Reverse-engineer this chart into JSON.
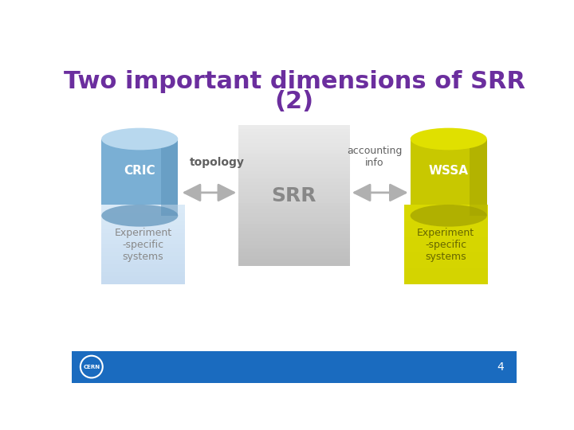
{
  "title_line1": "Two important dimensions of SRR",
  "title_line2": "(2)",
  "title_color": "#6B2E9E",
  "title_fontsize": 22,
  "bg_color": "#ffffff",
  "footer_color": "#1a6bbf",
  "page_number": "4",
  "cric_cyl_body": "#7aafd4",
  "cric_cyl_top": "#b8d8ee",
  "cric_cyl_shadow": "#5a90b8",
  "cric_label": "CRIC",
  "cric_box_color_top": "#c8dff0",
  "cric_box_color_bot": "#ddeeff",
  "cric_box_label": "Experiment\n-specific\nsystems",
  "wssa_cyl_body": "#c8c800",
  "wssa_cyl_top": "#e0e000",
  "wssa_cyl_shadow": "#a0a000",
  "wssa_label": "WSSA",
  "wssa_box_color": "#d4d400",
  "wssa_box_label": "Experiment\n-specific\nsystems",
  "srr_label": "SRR",
  "topology_label": "topology",
  "accounting_label": "accounting\ninfo",
  "arrow_color": "#b0b0b0",
  "arrow_dark": "#909090",
  "srr_label_color": "#888888",
  "white": "#ffffff",
  "label_color_dark": "#606060"
}
